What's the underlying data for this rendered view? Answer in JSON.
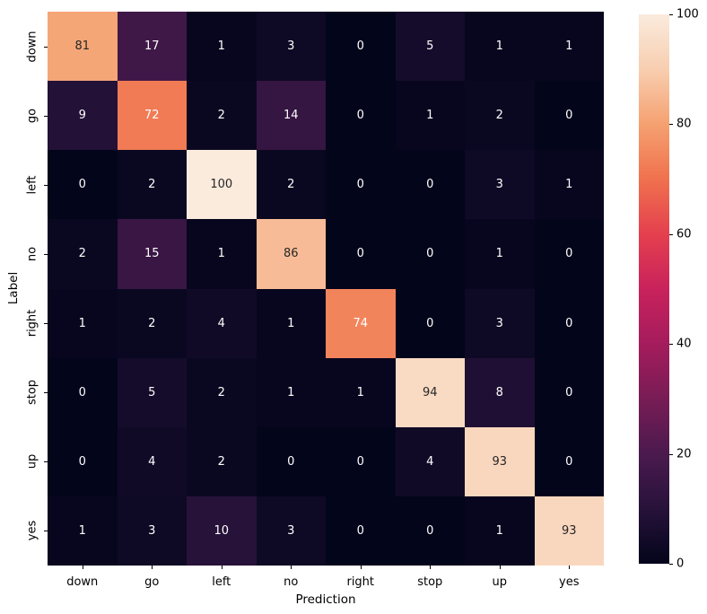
{
  "chart_data": {
    "type": "heatmap",
    "title": "",
    "xlabel": "Prediction",
    "ylabel": "Label",
    "x_categories": [
      "down",
      "go",
      "left",
      "no",
      "right",
      "stop",
      "up",
      "yes"
    ],
    "y_categories": [
      "down",
      "go",
      "left",
      "no",
      "right",
      "stop",
      "up",
      "yes"
    ],
    "matrix": [
      [
        81,
        17,
        1,
        3,
        0,
        5,
        1,
        1
      ],
      [
        9,
        72,
        2,
        14,
        0,
        1,
        2,
        0
      ],
      [
        0,
        2,
        100,
        2,
        0,
        0,
        3,
        1
      ],
      [
        2,
        15,
        1,
        86,
        0,
        0,
        1,
        0
      ],
      [
        1,
        2,
        4,
        1,
        74,
        0,
        3,
        0
      ],
      [
        0,
        5,
        2,
        1,
        1,
        94,
        8,
        0
      ],
      [
        0,
        4,
        2,
        0,
        0,
        4,
        93,
        0
      ],
      [
        1,
        3,
        10,
        3,
        0,
        0,
        1,
        93
      ]
    ],
    "vmin": 0,
    "vmax": 100,
    "grid": false,
    "legend": "none",
    "colorbar": {
      "position": "right",
      "ticks": [
        0,
        20,
        40,
        60,
        80,
        100
      ]
    },
    "colormap": {
      "name": "rocket",
      "stops": [
        {
          "v": 0,
          "c": "#03051B"
        },
        {
          "v": 10,
          "c": "#27123A"
        },
        {
          "v": 20,
          "c": "#4B1A4E"
        },
        {
          "v": 30,
          "c": "#781C55"
        },
        {
          "v": 40,
          "c": "#A51C5C"
        },
        {
          "v": 50,
          "c": "#C9225C"
        },
        {
          "v": 60,
          "c": "#E4404E"
        },
        {
          "v": 70,
          "c": "#F0714E"
        },
        {
          "v": 80,
          "c": "#F5A171"
        },
        {
          "v": 90,
          "c": "#F8CEB0"
        },
        {
          "v": 100,
          "c": "#FAEBDD"
        }
      ]
    },
    "annotation_colors": {
      "on_dark_cell": "#ffffff",
      "on_light_cell": "#262626"
    },
    "axis_text_color": "#000000",
    "background": "#ffffff"
  }
}
